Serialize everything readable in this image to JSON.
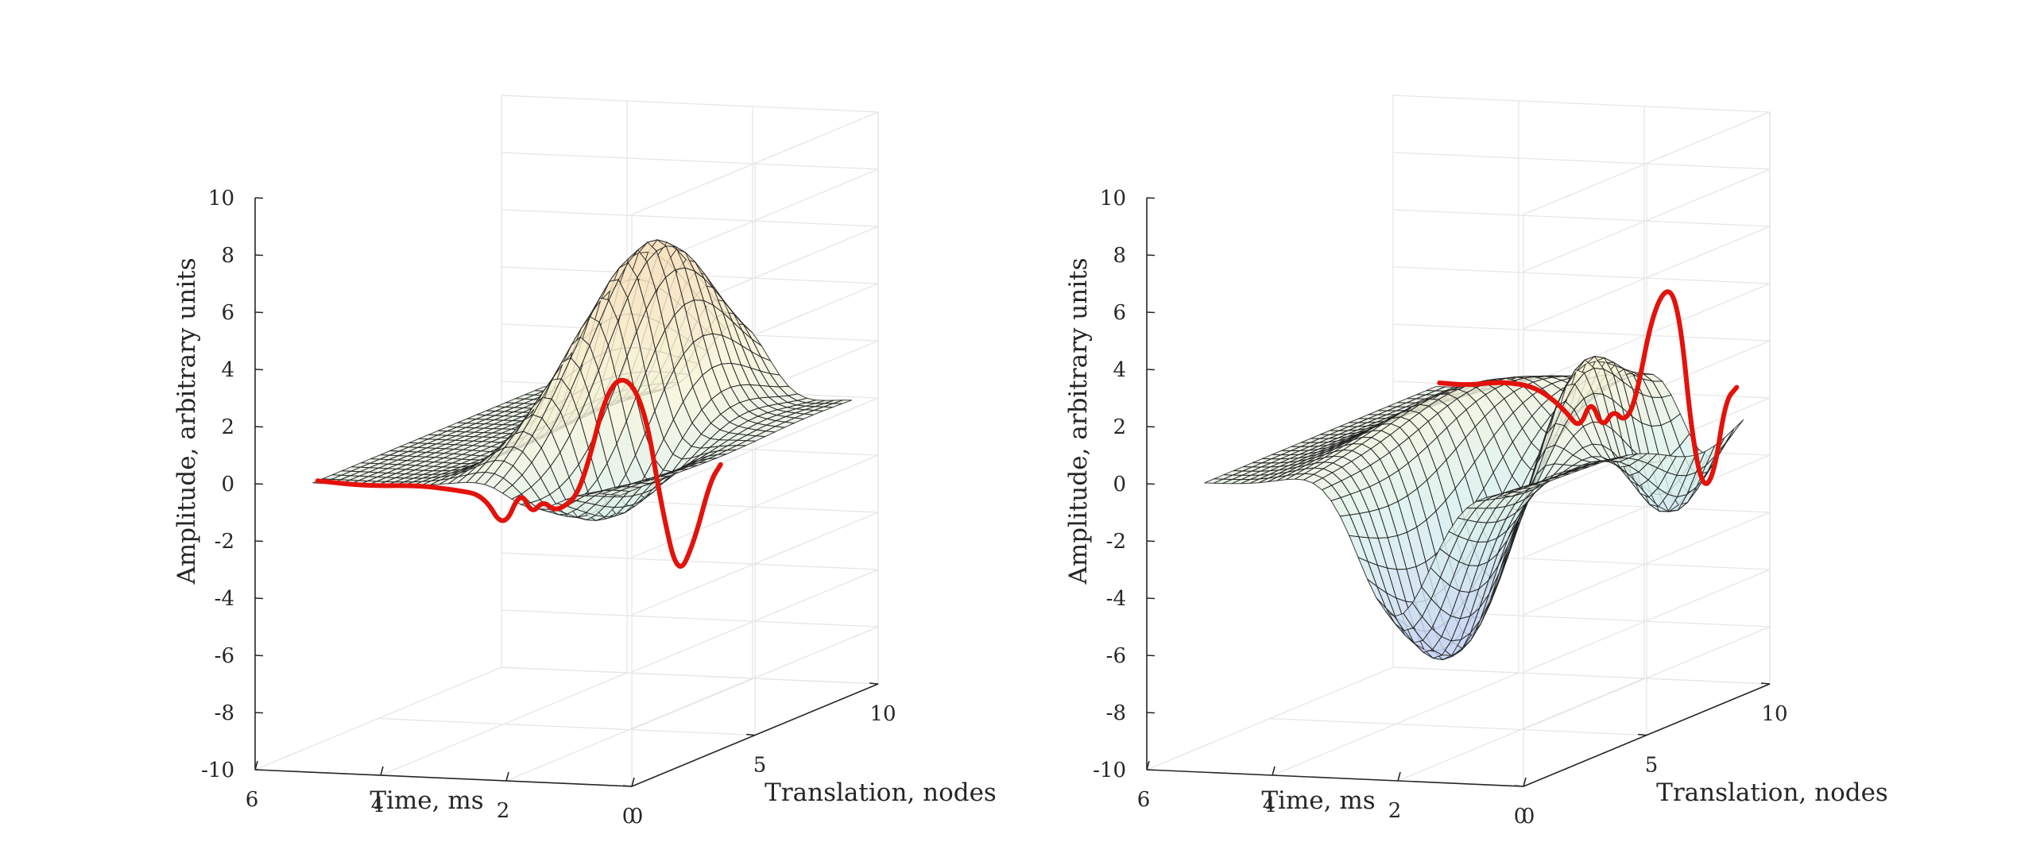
{
  "chart_data": [
    {
      "type": "surface",
      "xlabel": "Time, ms",
      "ylabel": "Translation, nodes",
      "zlabel": "Amplitude, arbitrary units",
      "xlim": [
        0,
        6
      ],
      "ylim": [
        0,
        10
      ],
      "zlim": [
        -10,
        10
      ],
      "x_ticks": [
        "0",
        "2",
        "4",
        "6"
      ],
      "y_ticks": [
        "0",
        "5",
        "10"
      ],
      "z_ticks": [
        "-10",
        "-8",
        "-6",
        "-4",
        "-2",
        "0",
        "2",
        "4",
        "6",
        "8",
        "10"
      ],
      "grid": true,
      "colormap": [
        "#c8d4f2",
        "#d8f0ee",
        "#f8f4d8",
        "#f8e2c0"
      ],
      "surface_color": "mesh over pale blue-to-yellow colormap",
      "highlight_color": "#e3120b",
      "surface_features": [
        {
          "t": 2.0,
          "n": 6.5,
          "amp": 6.0,
          "width_t": 0.45,
          "width_n": 2.2
        },
        {
          "t": 2.4,
          "n": 5.0,
          "amp": 2.5,
          "width_t": 0.4,
          "width_n": 2.5
        },
        {
          "t": 1.6,
          "n": 4.0,
          "amp": -3.0,
          "width_t": 0.4,
          "width_n": 2.0
        }
      ],
      "highlight_trace": {
        "name": "",
        "x": [
          5.2,
          4.6,
          4.0,
          3.6,
          3.3,
          3.1,
          2.95,
          2.85,
          2.75,
          2.65,
          2.55,
          2.45,
          2.35,
          2.2,
          2.05,
          1.9,
          1.8,
          1.7,
          1.6,
          1.5,
          1.45
        ],
        "y": [
          0.5,
          1.0,
          1.5,
          2.0,
          2.4,
          2.7,
          3.0,
          3.2,
          3.4,
          3.6,
          3.8,
          4.0,
          4.2,
          4.6,
          5.0,
          5.4,
          5.8,
          6.2,
          6.6,
          7.0,
          7.3
        ],
        "z": [
          0.0,
          -0.3,
          -0.4,
          -0.7,
          -1.0,
          -2.3,
          -1.0,
          -1.9,
          -1.5,
          -1.9,
          -1.8,
          -1.5,
          -0.5,
          2.0,
          2.4,
          1.0,
          -2.5,
          -5.1,
          -4.0,
          -2.0,
          -1.5
        ]
      }
    },
    {
      "type": "surface",
      "xlabel": "Time, ms",
      "ylabel": "Translation, nodes",
      "zlabel": "Amplitude, arbitrary units",
      "xlim": [
        0,
        6
      ],
      "ylim": [
        0,
        10
      ],
      "zlim": [
        -10,
        10
      ],
      "x_ticks": [
        "0",
        "2",
        "4",
        "6"
      ],
      "y_ticks": [
        "0",
        "5",
        "10"
      ],
      "z_ticks": [
        "-10",
        "-8",
        "-6",
        "-4",
        "-2",
        "0",
        "2",
        "4",
        "6",
        "8",
        "10"
      ],
      "grid": true,
      "colormap": [
        "#c8d4f2",
        "#d8f0ee",
        "#f8f4d8",
        "#f8e2c0"
      ],
      "surface_color": "mesh over pale blue-to-yellow colormap",
      "highlight_color": "#e3120b",
      "surface_features": [
        {
          "t": 2.2,
          "n": 3.0,
          "amp": -7.5,
          "width_t": 0.6,
          "width_n": 2.5
        },
        {
          "t": 1.6,
          "n": 6.5,
          "amp": 4.5,
          "width_t": 0.4,
          "width_n": 2.0
        },
        {
          "t": 0.9,
          "n": 8.0,
          "amp": -4.0,
          "width_t": 0.4,
          "width_n": 1.5
        },
        {
          "t": 3.2,
          "n": 5.0,
          "amp": 2.0,
          "width_t": 0.6,
          "width_n": 3.0
        }
      ],
      "highlight_trace": {
        "name": "",
        "x": [
          3.3,
          3.0,
          2.7,
          2.4,
          2.2,
          2.0,
          1.85,
          1.75,
          1.65,
          1.55,
          1.45,
          1.35,
          1.2,
          1.05,
          0.95,
          0.85,
          0.75,
          0.65,
          0.55,
          0.45
        ],
        "y": [
          5.0,
          5.4,
          5.8,
          6.2,
          6.5,
          6.8,
          7.0,
          7.2,
          7.4,
          7.6,
          7.8,
          8.0,
          8.3,
          8.6,
          8.8,
          9.0,
          9.2,
          9.4,
          9.6,
          9.8
        ],
        "z": [
          2.0,
          1.8,
          1.8,
          1.6,
          1.2,
          0.5,
          -0.2,
          0.8,
          -0.3,
          0.3,
          -0.2,
          0.5,
          3.5,
          4.4,
          3.0,
          -1.0,
          -3.0,
          -2.5,
          0.0,
          0.4
        ]
      }
    }
  ]
}
